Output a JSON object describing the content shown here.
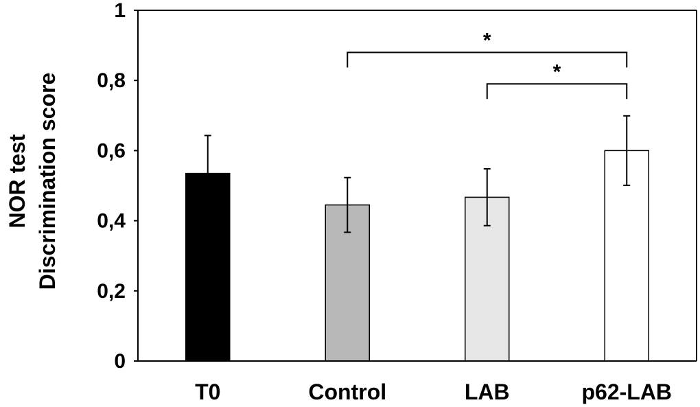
{
  "chart_data": {
    "type": "bar",
    "title": "",
    "xlabel": "",
    "ylabel_lines": [
      "NOR test",
      "Discrimination score"
    ],
    "ylim": [
      0,
      1
    ],
    "yticks": [
      0,
      0.2,
      0.4,
      0.6,
      0.8,
      1
    ],
    "ytick_labels": [
      "0",
      "0,2",
      "0,4",
      "0,6",
      "0,8",
      "1"
    ],
    "categories": [
      "T0",
      "Control",
      "LAB",
      "p62-LAB"
    ],
    "values": [
      0.535,
      0.445,
      0.467,
      0.6
    ],
    "errors": [
      0.108,
      0.078,
      0.081,
      0.099
    ],
    "colors": [
      "#000000",
      "#b8b8b8",
      "#e6e6e6",
      "#ffffff"
    ],
    "significance": [
      {
        "from": "Control",
        "to": "p62-LAB",
        "label": "*",
        "y": 0.88
      },
      {
        "from": "LAB",
        "to": "p62-LAB",
        "label": "*",
        "y": 0.79
      }
    ]
  }
}
